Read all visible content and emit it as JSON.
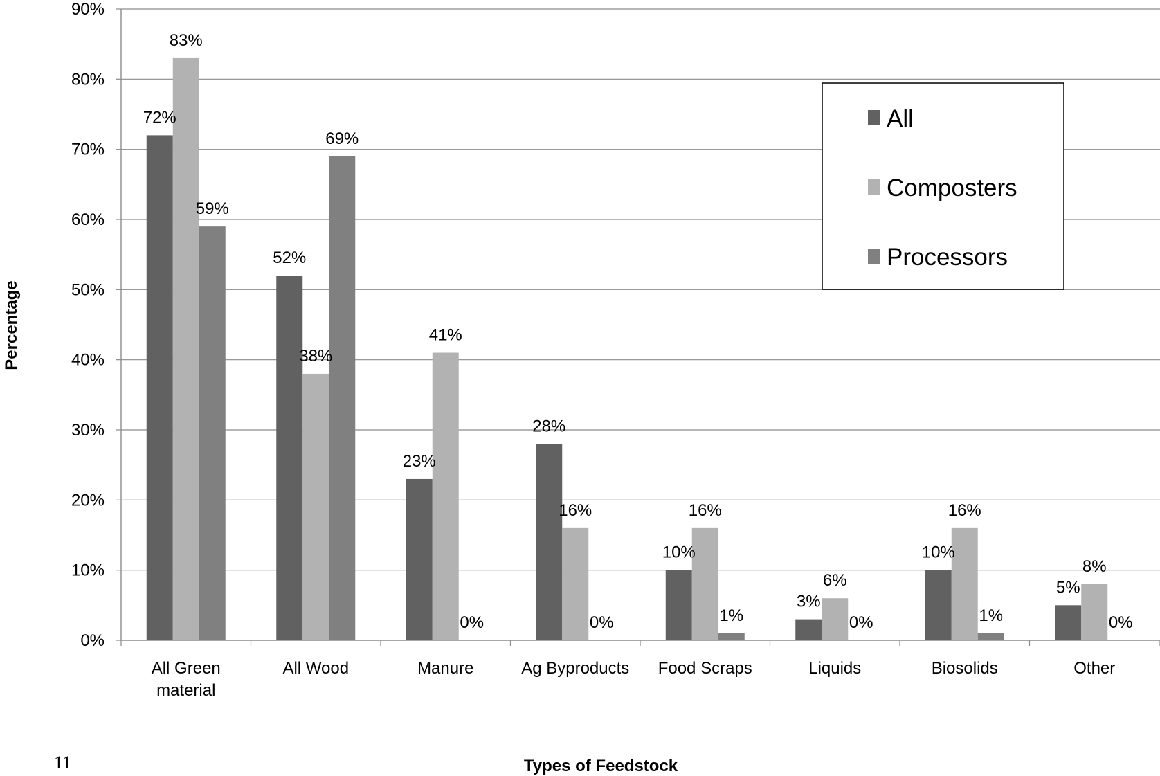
{
  "page_number": "11",
  "chart_data": {
    "type": "bar",
    "title": "",
    "xlabel": "Types of Feedstock",
    "ylabel": "Percentage",
    "ylim": [
      0,
      90
    ],
    "y_ticks": [
      "0%",
      "10%",
      "20%",
      "30%",
      "40%",
      "50%",
      "60%",
      "70%",
      "80%",
      "90%"
    ],
    "categories": [
      [
        "All Green",
        "material"
      ],
      [
        "All Wood"
      ],
      [
        "Manure"
      ],
      [
        "Ag Byproducts"
      ],
      [
        "Food Scraps"
      ],
      [
        "Liquids"
      ],
      [
        "Biosolids"
      ],
      [
        "Other"
      ]
    ],
    "series": [
      {
        "name": "All",
        "color": "#616161",
        "values": [
          72,
          52,
          23,
          28,
          10,
          3,
          10,
          5
        ],
        "labels": [
          "72%",
          "52%",
          "23%",
          "28%",
          "10%",
          "3%",
          "10%",
          "5%"
        ]
      },
      {
        "name": "Composters",
        "color": "#b2b2b2",
        "values": [
          83,
          38,
          41,
          16,
          16,
          6,
          16,
          8
        ],
        "labels": [
          "83%",
          "38%",
          "41%",
          "16%",
          "16%",
          "6%",
          "16%",
          "8%"
        ]
      },
      {
        "name": "Processors",
        "color": "#808080",
        "values": [
          59,
          69,
          0,
          0,
          1,
          0,
          1,
          0
        ],
        "labels": [
          "59%",
          "69%",
          "0%",
          "0%",
          "1%",
          "0%",
          "1%",
          "0%"
        ]
      }
    ],
    "grid": true,
    "legend_position": "top-right"
  }
}
